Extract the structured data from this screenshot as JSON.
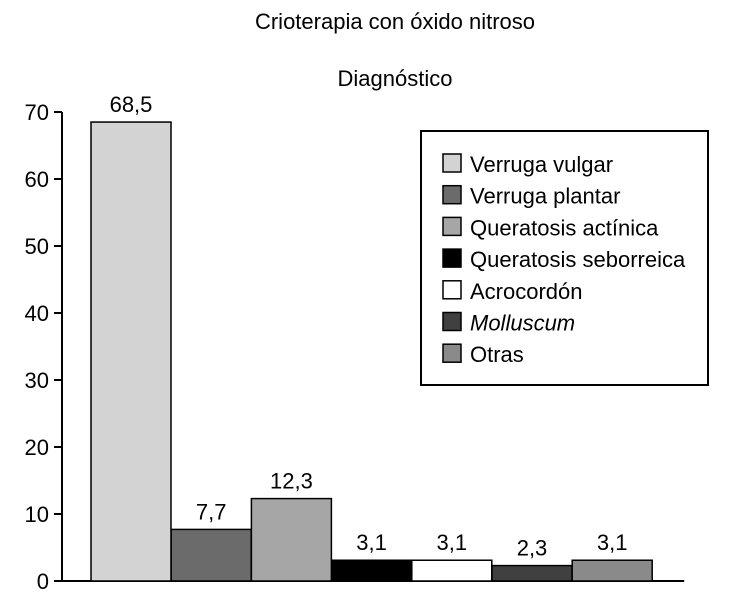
{
  "chart_data": {
    "type": "bar",
    "title": "Crioterapia con óxido nitroso",
    "subtitle": "Diagnóstico",
    "categories": [
      "Verruga vulgar",
      "Verruga plantar",
      "Queratosis actínica",
      "Queratosis seborreica",
      "Acrocordón",
      "Molluscum",
      "Otras"
    ],
    "values": [
      68.5,
      7.7,
      12.3,
      3.1,
      3.1,
      2.3,
      3.1
    ],
    "value_labels": [
      "68,5",
      "7,7",
      "12,3",
      "3,1",
      "3,1",
      "2,3",
      "3,1"
    ],
    "colors": [
      "#d3d3d3",
      "#6b6b6b",
      "#a6a6a6",
      "#000000",
      "#ffffff",
      "#404040",
      "#8a8a8a"
    ],
    "italic_categories": [
      "Molluscum"
    ],
    "ylim": [
      0,
      70
    ],
    "yticks": [
      0,
      10,
      20,
      30,
      40,
      50,
      60,
      70
    ],
    "ytick_labels": [
      "0",
      "10",
      "20",
      "30",
      "40",
      "50",
      "60",
      "70"
    ],
    "xlabel": "",
    "ylabel": "",
    "grid": false,
    "legend_position": "top-right"
  }
}
